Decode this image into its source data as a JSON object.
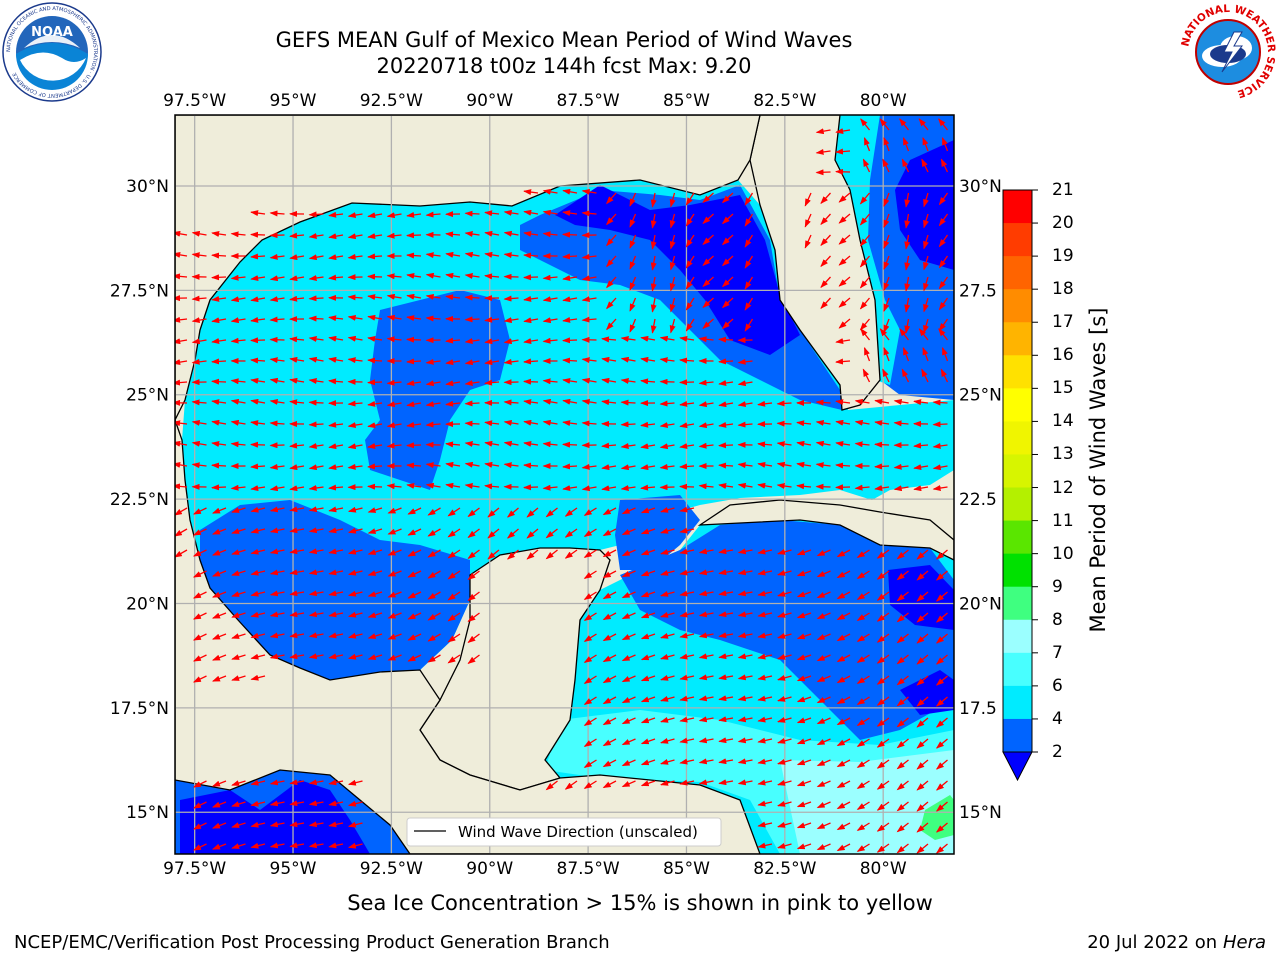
{
  "title": {
    "line1": "GEFS MEAN Gulf of Mexico Mean Period of Wind Waves",
    "line2": "20220718 t00z 144h fcst   Max: 9.20"
  },
  "logos": {
    "left": "noaa-logo",
    "left_text": "NOAA",
    "left_ring_text": "NATIONAL OCEANIC AND ATMOSPHERIC ADMINISTRATION · U.S. DEPARTMENT OF COMMERCE",
    "right": "national-weather-service-logo",
    "right_ring_text": "NATIONAL WEATHER SERVICE"
  },
  "map": {
    "lon_labels": [
      "97.5°W",
      "95°W",
      "92.5°W",
      "90°W",
      "87.5°W",
      "85°W",
      "82.5°W",
      "80°W"
    ],
    "lon_values": [
      -97.5,
      -95,
      -92.5,
      -90,
      -87.5,
      -85,
      -82.5,
      -80
    ],
    "lat_labels": [
      "30°N",
      "27.5°N",
      "25°N",
      "22.5°N",
      "20°N",
      "17.5°N",
      "15°N"
    ],
    "lat_labels_right": [
      "30°N",
      "27.5",
      "25°N",
      "22.5",
      "20°N",
      "17.5",
      "15°N"
    ],
    "lat_values": [
      30,
      27.5,
      25,
      22.5,
      20,
      17.5,
      15
    ],
    "extent": {
      "lon_min": -98,
      "lon_max": -78.2,
      "lat_min": 14,
      "lat_max": 31.7
    },
    "legend": "Wind Wave Direction (unscaled)",
    "land_color": "#efedda",
    "arrow_color": "#ff0000"
  },
  "colorbar": {
    "label": "Mean Period of Wind Waves [s]",
    "ticks": [
      "2",
      "4",
      "6",
      "7",
      "8",
      "9",
      "10",
      "11",
      "12",
      "13",
      "14",
      "15",
      "16",
      "17",
      "18",
      "19",
      "20",
      "21"
    ],
    "colors": [
      "#0064ff",
      "#00ebff",
      "#48ffff",
      "#9bffff",
      "#3fff80",
      "#00e100",
      "#5ae600",
      "#b4f000",
      "#d7f500",
      "#f0f500",
      "#ffff00",
      "#ffe100",
      "#ffb400",
      "#ff8c00",
      "#ff6400",
      "#ff3c00",
      "#ff0000"
    ],
    "under_color": "#0000ff"
  },
  "sea_ice_note": "Sea Ice Concentration > 15% is shown in pink to yellow",
  "footer": {
    "left": "NCEP/EMC/Verification Post Processing Product Generation Branch",
    "date": "20 Jul 2022 on",
    "host": "Hera"
  }
}
